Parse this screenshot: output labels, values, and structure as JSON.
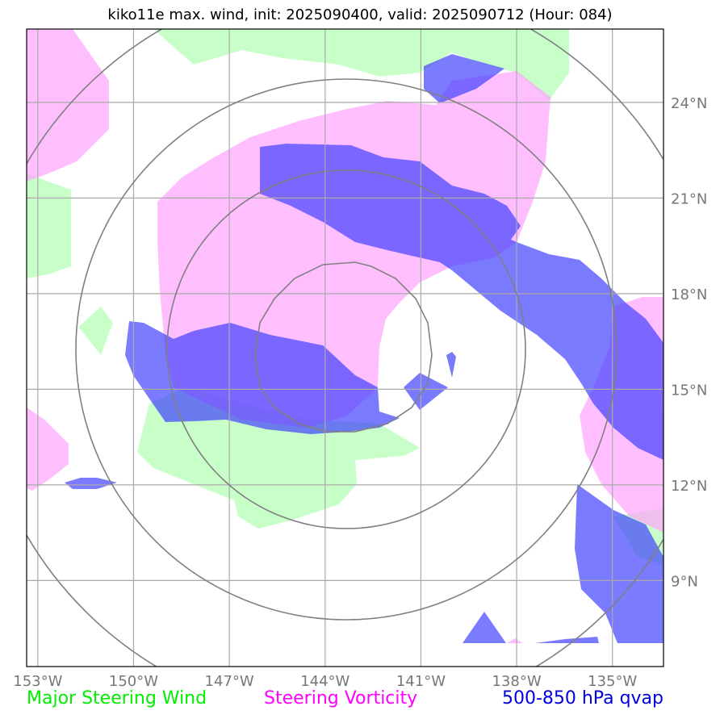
{
  "title": "kiko11e max. wind, init: 2025090400, valid: 2025090712 (Hour: 084)",
  "colors": {
    "steering_wind": "#c8ffc8",
    "steering_vorticity": "#ff9cff",
    "qvap": "#3c3cff",
    "grid": "#aaaaaa",
    "circles": "#808080",
    "tick_text": "#777777",
    "legend_wind": "#00ee00",
    "legend_vorticity": "#ff00ff",
    "legend_qvap": "#0000dd"
  },
  "map": {
    "lon_ticks": [
      {
        "value": -153,
        "label": "153°W"
      },
      {
        "value": -150,
        "label": "150°W"
      },
      {
        "value": -147,
        "label": "147°W"
      },
      {
        "value": -144,
        "label": "144°W"
      },
      {
        "value": -141,
        "label": "141°W"
      },
      {
        "value": -138,
        "label": "138°W"
      },
      {
        "value": -135,
        "label": "135°W"
      }
    ],
    "lat_ticks": [
      {
        "value": 24,
        "label": "24°N"
      },
      {
        "value": 21,
        "label": "21°N"
      },
      {
        "value": 18,
        "label": "18°N"
      },
      {
        "value": 15,
        "label": "15°N"
      },
      {
        "value": 12,
        "label": "12°N"
      },
      {
        "value": 9,
        "label": "9°N"
      }
    ],
    "extent": {
      "lon_min": -153.35,
      "lon_max": -133.4,
      "lat_min": 6.3,
      "lat_max": 26.3
    }
  },
  "legend": {
    "steering_wind": "Major Steering Wind",
    "steering_vorticity": "Steering Vorticity",
    "qvap": "500-850 hPa qvap"
  }
}
